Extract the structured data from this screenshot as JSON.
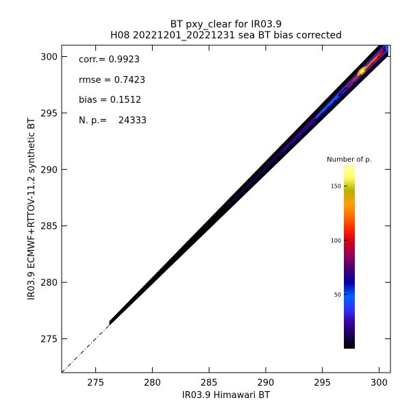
{
  "chart_data": {
    "type": "heatmap",
    "title": "BT pxy_clear for IR03.9",
    "subtitle": "H08 20221201_20221231 sea BT bias corrected",
    "xlabel": "IR03.9 Himawari BT",
    "ylabel": "IR03.9 ECMWF+RTTOV-11.2 synthetic BT",
    "xlim": [
      272,
      301
    ],
    "ylim": [
      272,
      301
    ],
    "x_ticks": [
      275,
      280,
      285,
      290,
      295,
      300
    ],
    "y_ticks": [
      275,
      280,
      285,
      290,
      295,
      300
    ],
    "grid": false,
    "one_to_one_line": true,
    "stats": [
      {
        "label": "corr.",
        "text": "corr.= 0.9923",
        "value": 0.9923
      },
      {
        "label": "rmse",
        "text": "rmse = 0.7423",
        "value": 0.7423
      },
      {
        "label": "bias",
        "text": "bias = 0.1512",
        "value": 0.1512
      },
      {
        "label": "N. p.",
        "text": "N. p.=    24333",
        "value": 24333
      }
    ],
    "colorbar": {
      "title": "Number of p.",
      "range": [
        0,
        170
      ],
      "ticks": [
        50,
        100,
        150
      ],
      "colors": [
        "#000000",
        "#1a0050",
        "#3a00a0",
        "#3030ff",
        "#0066ff",
        "#0000aa",
        "#400070",
        "#8a0060",
        "#c80020",
        "#ff2000",
        "#ff6a00",
        "#ffa000",
        "#b8b000",
        "#ffff60",
        "#ffffb0"
      ]
    },
    "density": {
      "x_range": [
        276.2,
        300.8
      ],
      "offset": 0.15,
      "halfwidth": [
        0.2,
        0.9
      ],
      "peak": {
        "x": 298.5,
        "y": 298.7,
        "count": 168
      }
    }
  }
}
